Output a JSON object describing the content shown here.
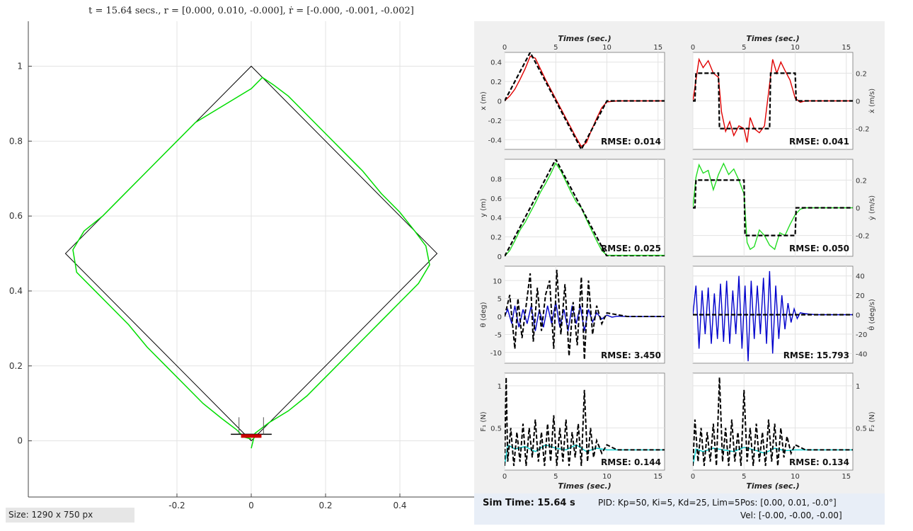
{
  "main_title": "t = 15.64 secs., r = [0.000, 0.010, -0.000], ṙ = [-0.000, -0.001, -0.002]",
  "status": {
    "sim_time": "Sim Time: 15.64 s",
    "pid": "PID: Kp=50, Ki=5, Kd=25, Lim=5",
    "pos": "Pos: [0.00, 0.01, -0.0°]",
    "vel": "Vel: [-0.00, -0.00, -0.00]"
  },
  "size_label": "Size: 1290 x 750 px",
  "colors": {
    "reference": "#000000",
    "trajectory": "#00dd00",
    "x_trace": "#e00000",
    "y_trace": "#22dd22",
    "theta_trace": "#0000cc",
    "force_trace": "#00cccc",
    "robot_body": "#cc0000"
  },
  "chart_data": [
    {
      "id": "trajectory",
      "type": "line",
      "title": "t = 15.64 secs., r = [0.000, 0.010, -0.000], ṙ = [-0.000, -0.001, -0.002]",
      "xlim": [
        -0.6,
        0.6
      ],
      "ylim": [
        -0.15,
        1.12
      ],
      "xticks": [
        -0.2,
        0,
        0.2,
        0.4
      ],
      "xtick_labels": [
        "-0.2",
        "0",
        "0.2",
        "0.4"
      ],
      "yticks": [
        0,
        0.2,
        0.4,
        0.6,
        0.8,
        1
      ],
      "ytick_labels": [
        "0",
        "0.2",
        "0.4",
        "0.6",
        "0.8",
        "1"
      ],
      "grid": true,
      "series": [
        {
          "name": "reference",
          "style": "solid-black",
          "x": [
            0,
            0.5,
            0,
            -0.5,
            0
          ],
          "y": [
            0,
            0.5,
            1,
            0.5,
            0
          ]
        },
        {
          "name": "actual",
          "style": "green",
          "x": [
            0.0,
            0.01,
            0.05,
            0.1,
            0.15,
            0.2,
            0.25,
            0.3,
            0.35,
            0.4,
            0.45,
            0.48,
            0.47,
            0.44,
            0.4,
            0.35,
            0.3,
            0.25,
            0.2,
            0.15,
            0.1,
            0.06,
            0.03,
            0.0,
            -0.05,
            -0.1,
            -0.15,
            -0.2,
            -0.25,
            -0.3,
            -0.35,
            -0.4,
            -0.45,
            -0.48,
            -0.47,
            -0.43,
            -0.38,
            -0.33,
            -0.28,
            -0.23,
            -0.18,
            -0.13,
            -0.08,
            -0.04,
            -0.02,
            0.0
          ],
          "y": [
            -0.02,
            0.02,
            0.05,
            0.08,
            0.12,
            0.17,
            0.22,
            0.27,
            0.32,
            0.37,
            0.42,
            0.47,
            0.52,
            0.56,
            0.61,
            0.66,
            0.72,
            0.77,
            0.82,
            0.87,
            0.92,
            0.95,
            0.97,
            0.94,
            0.91,
            0.88,
            0.85,
            0.8,
            0.75,
            0.7,
            0.65,
            0.6,
            0.56,
            0.51,
            0.45,
            0.41,
            0.36,
            0.31,
            0.25,
            0.2,
            0.15,
            0.1,
            0.06,
            0.03,
            0.01,
            0.005
          ]
        }
      ],
      "robot": {
        "x": 0.0,
        "y": 0.01,
        "width": 0.11
      }
    },
    {
      "id": "x",
      "type": "line",
      "ylabel": "x (m)",
      "ylabel_side": "left",
      "xlim": [
        0,
        15.64
      ],
      "ylim": [
        -0.5,
        0.5
      ],
      "yticks": [
        -0.4,
        -0.2,
        0,
        0.2,
        0.4
      ],
      "ytick_labels": [
        "-0.4",
        "-0.2",
        "0",
        "0.2",
        "0.4"
      ],
      "xticks": [
        0,
        5,
        10,
        15
      ],
      "xtick_labels": [
        "0",
        "5",
        "10",
        "15"
      ],
      "rmse": "RMSE: 0.014",
      "ref": {
        "x": [
          0,
          2.5,
          5,
          7.5,
          10,
          15.64
        ],
        "y": [
          0,
          0.5,
          0,
          -0.5,
          0,
          0
        ]
      },
      "actual": {
        "x": [
          0,
          0.5,
          1,
          1.5,
          2,
          2.5,
          3,
          3.5,
          4,
          4.5,
          5,
          5.5,
          6,
          6.5,
          7,
          7.5,
          8,
          8.5,
          9,
          9.5,
          10,
          11,
          12,
          13,
          14,
          15.64
        ],
        "y": [
          0,
          0.05,
          0.12,
          0.22,
          0.33,
          0.46,
          0.44,
          0.33,
          0.22,
          0.12,
          0.02,
          -0.08,
          -0.18,
          -0.28,
          -0.38,
          -0.47,
          -0.43,
          -0.3,
          -0.18,
          -0.07,
          -0.01,
          0,
          0,
          0,
          0,
          0
        ]
      }
    },
    {
      "id": "xdot",
      "type": "line",
      "ylabel": "ẋ (m/s)",
      "ylabel_side": "right",
      "xlim": [
        0,
        15.64
      ],
      "ylim": [
        -0.35,
        0.35
      ],
      "yticks": [
        -0.2,
        0,
        0.2
      ],
      "ytick_labels": [
        "-0.2",
        "0",
        "0.2"
      ],
      "xticks": [
        0,
        5,
        10,
        15
      ],
      "xtick_labels": [
        "0",
        "5",
        "10",
        "15"
      ],
      "rmse": "RMSE: 0.041",
      "ref": {
        "x": [
          0,
          0.2,
          0.3,
          2.5,
          2.6,
          5,
          5.1,
          7.5,
          7.6,
          10,
          10.1,
          15.64
        ],
        "y": [
          0,
          0,
          0.2,
          0.2,
          -0.2,
          -0.2,
          -0.2,
          -0.2,
          0.2,
          0.2,
          0,
          0
        ]
      },
      "actual": {
        "x": [
          0,
          0.3,
          0.6,
          1,
          1.5,
          2,
          2.5,
          2.8,
          3.2,
          3.6,
          4,
          4.5,
          5,
          5.3,
          5.6,
          6,
          6.5,
          7,
          7.5,
          7.8,
          8.2,
          8.6,
          9,
          9.5,
          10,
          10.5,
          11,
          12,
          13,
          15.64
        ],
        "y": [
          0,
          0.15,
          0.3,
          0.24,
          0.29,
          0.2,
          0.17,
          -0.08,
          -0.22,
          -0.15,
          -0.25,
          -0.18,
          -0.2,
          -0.3,
          -0.12,
          -0.2,
          -0.23,
          -0.18,
          0.12,
          0.3,
          0.2,
          0.28,
          0.22,
          0.15,
          0.02,
          -0.01,
          0,
          0,
          0,
          0
        ]
      }
    },
    {
      "id": "y",
      "type": "line",
      "ylabel": "y (m)",
      "ylabel_side": "left",
      "xlim": [
        0,
        15.64
      ],
      "ylim": [
        0,
        1
      ],
      "yticks": [
        0,
        0.2,
        0.4,
        0.6,
        0.8
      ],
      "ytick_labels": [
        "0",
        "0.2",
        "0.4",
        "0.6",
        "0.8"
      ],
      "xticks": [
        0,
        5,
        10,
        15
      ],
      "xtick_labels": [
        "0",
        "5",
        "10",
        "15"
      ],
      "rmse": "RMSE: 0.025",
      "ref": {
        "x": [
          0,
          5,
          10,
          15.64
        ],
        "y": [
          0,
          1,
          0,
          0
        ]
      },
      "actual": {
        "x": [
          0,
          0.5,
          1,
          1.5,
          2,
          2.5,
          3,
          3.5,
          4,
          4.5,
          5,
          5.5,
          6,
          6.5,
          7,
          7.5,
          8,
          8.5,
          9,
          9.5,
          10,
          11,
          12,
          13,
          15.64
        ],
        "y": [
          0,
          0.06,
          0.16,
          0.27,
          0.35,
          0.45,
          0.55,
          0.66,
          0.75,
          0.85,
          0.96,
          0.88,
          0.77,
          0.66,
          0.56,
          0.5,
          0.38,
          0.27,
          0.16,
          0.06,
          0.01,
          0.01,
          0.01,
          0.01,
          0.01
        ]
      }
    },
    {
      "id": "ydot",
      "type": "line",
      "ylabel": "ẏ (m/s)",
      "ylabel_side": "right",
      "xlim": [
        0,
        15.64
      ],
      "ylim": [
        -0.35,
        0.35
      ],
      "yticks": [
        -0.2,
        0,
        0.2
      ],
      "ytick_labels": [
        "-0.2",
        "0",
        "0.2"
      ],
      "xticks": [
        0,
        5,
        10,
        15
      ],
      "xtick_labels": [
        "0",
        "5",
        "10",
        "15"
      ],
      "rmse": "RMSE: 0.050",
      "ref": {
        "x": [
          0,
          0.2,
          0.3,
          5,
          5.1,
          10,
          10.1,
          15.64
        ],
        "y": [
          0,
          0,
          0.2,
          0.2,
          -0.2,
          -0.2,
          0,
          0
        ]
      },
      "actual": {
        "x": [
          0,
          0.3,
          0.6,
          1,
          1.5,
          2,
          2.5,
          3,
          3.5,
          4,
          4.5,
          5,
          5.3,
          5.6,
          6,
          6.5,
          7,
          7.5,
          8,
          8.5,
          9,
          9.5,
          10,
          10.5,
          11,
          12,
          13,
          15.64
        ],
        "y": [
          0,
          0.22,
          0.31,
          0.25,
          0.27,
          0.13,
          0.24,
          0.32,
          0.24,
          0.28,
          0.2,
          0.1,
          -0.25,
          -0.3,
          -0.28,
          -0.16,
          -0.2,
          -0.27,
          -0.3,
          -0.18,
          -0.2,
          -0.12,
          -0.05,
          -0.01,
          0,
          0,
          0,
          0
        ]
      }
    },
    {
      "id": "theta",
      "type": "line",
      "ylabel": "θ (deg)",
      "ylabel_side": "left",
      "xlim": [
        0,
        15.64
      ],
      "ylim": [
        -13,
        14
      ],
      "yticks": [
        -10,
        -5,
        0,
        5,
        10
      ],
      "ytick_labels": [
        "-10",
        "-5",
        "0",
        "5",
        "10"
      ],
      "xticks": [
        0,
        5,
        10,
        15
      ],
      "xtick_labels": [
        "0",
        "5",
        "10",
        "15"
      ],
      "rmse": "RMSE: 3.450",
      "ref_style": "noisy",
      "ref": {
        "x": [
          0,
          0.5,
          1,
          1.3,
          1.7,
          2.1,
          2.5,
          2.8,
          3.2,
          3.6,
          4,
          4.4,
          4.8,
          5.1,
          5.5,
          5.9,
          6.3,
          6.7,
          7.1,
          7.5,
          7.8,
          8.2,
          8.6,
          9,
          9.5,
          10,
          11,
          12,
          13,
          15.64
        ],
        "y": [
          0,
          6,
          -9,
          5,
          -6,
          3,
          12,
          -7,
          8,
          -4,
          6,
          10,
          -9,
          13,
          -5,
          9,
          -11,
          4,
          -8,
          11,
          -12,
          10,
          -5,
          3,
          -2,
          1,
          0.5,
          0,
          0,
          0
        ]
      },
      "actual": {
        "x": [
          0,
          0.3,
          0.7,
          1,
          1.4,
          1.8,
          2.2,
          2.6,
          3,
          3.4,
          3.8,
          4.2,
          4.6,
          5,
          5.4,
          5.8,
          6.2,
          6.6,
          7,
          7.4,
          7.8,
          8.2,
          8.6,
          9,
          9.5,
          10,
          10.5,
          11,
          12,
          13,
          15.64
        ],
        "y": [
          0,
          2,
          -2,
          3,
          -3,
          2,
          -2,
          3,
          -4,
          2,
          -3,
          3,
          -2,
          4,
          -3,
          2,
          -4,
          3,
          -2,
          3,
          -4,
          2,
          -1.5,
          1,
          -0.7,
          0.4,
          -0.2,
          0.1,
          0,
          0,
          0
        ]
      }
    },
    {
      "id": "thetadot",
      "type": "line",
      "ylabel": "θ̇ (deg/s)",
      "ylabel_side": "right",
      "xlim": [
        0,
        15.64
      ],
      "ylim": [
        -50,
        50
      ],
      "yticks": [
        -40,
        -20,
        0,
        20,
        40
      ],
      "ytick_labels": [
        "-40",
        "-20",
        "0",
        "20",
        "40"
      ],
      "xticks": [
        0,
        5,
        10,
        15
      ],
      "xtick_labels": [
        "0",
        "5",
        "10",
        "15"
      ],
      "rmse": "RMSE: 15.793",
      "ref": {
        "x": [
          0,
          15.64
        ],
        "y": [
          0,
          0
        ]
      },
      "actual": {
        "x": [
          0,
          0.3,
          0.6,
          0.9,
          1.2,
          1.5,
          1.8,
          2.1,
          2.4,
          2.7,
          3,
          3.3,
          3.6,
          3.9,
          4.2,
          4.5,
          4.8,
          5.1,
          5.4,
          5.7,
          6,
          6.3,
          6.6,
          6.9,
          7.2,
          7.5,
          7.8,
          8.1,
          8.4,
          8.7,
          9,
          9.3,
          9.6,
          9.9,
          10.2,
          10.5,
          11,
          12,
          13,
          15.64
        ],
        "y": [
          0,
          30,
          -35,
          25,
          -20,
          28,
          -30,
          22,
          -25,
          32,
          -28,
          35,
          -30,
          25,
          -20,
          40,
          -35,
          30,
          -48,
          35,
          -25,
          30,
          -20,
          38,
          -30,
          45,
          -40,
          30,
          -25,
          20,
          -15,
          12,
          -8,
          6,
          -4,
          2,
          1,
          0,
          0,
          0
        ]
      }
    },
    {
      "id": "F1",
      "type": "line",
      "ylabel": "F₁ (N)",
      "ylabel_side": "left",
      "xlim": [
        0,
        15.64
      ],
      "ylim": [
        0,
        1.15
      ],
      "yticks": [
        0.5,
        1
      ],
      "ytick_labels": [
        "0.5",
        "1"
      ],
      "xticks": [
        0,
        5,
        10,
        15
      ],
      "xtick_labels": [
        "0",
        "5",
        "10",
        "15"
      ],
      "rmse": "RMSE: 0.144",
      "ref_style": "noisy",
      "ref": {
        "x": [
          0,
          0.15,
          0.3,
          0.6,
          0.9,
          1.2,
          1.5,
          1.8,
          2.1,
          2.4,
          2.7,
          3,
          3.3,
          3.6,
          3.9,
          4.2,
          4.5,
          4.8,
          5.1,
          5.4,
          5.7,
          6,
          6.3,
          6.6,
          6.9,
          7.2,
          7.5,
          7.8,
          8.1,
          8.4,
          8.7,
          9,
          9.5,
          10,
          11,
          12,
          13,
          15.64
        ],
        "y": [
          0.05,
          1.1,
          0.1,
          0.5,
          0.05,
          0.45,
          0.1,
          0.55,
          0.05,
          0.5,
          0.15,
          0.6,
          0.1,
          0.45,
          0.05,
          0.55,
          0.1,
          0.65,
          0.05,
          0.5,
          0.1,
          0.6,
          0.05,
          0.45,
          0.15,
          0.55,
          0.05,
          0.95,
          0.1,
          0.5,
          0.15,
          0.35,
          0.2,
          0.3,
          0.24,
          0.24,
          0.24,
          0.24
        ]
      },
      "actual": {
        "x": [
          0,
          0.3,
          1,
          2,
          3,
          4,
          5,
          6,
          7,
          8,
          9,
          10,
          11,
          12,
          13,
          15.64
        ],
        "y": [
          0.05,
          0.3,
          0.25,
          0.28,
          0.22,
          0.3,
          0.26,
          0.24,
          0.3,
          0.22,
          0.26,
          0.24,
          0.24,
          0.24,
          0.24,
          0.24
        ]
      }
    },
    {
      "id": "F2",
      "type": "line",
      "ylabel": "F₂ (N)",
      "ylabel_side": "right",
      "xlim": [
        0,
        15.64
      ],
      "ylim": [
        0,
        1.15
      ],
      "yticks": [
        0.5,
        1
      ],
      "ytick_labels": [
        "0.5",
        "1"
      ],
      "xticks": [
        0,
        5,
        10,
        15
      ],
      "xtick_labels": [
        "0",
        "5",
        "10",
        "15"
      ],
      "rmse": "RMSE: 0.134",
      "ref_style": "noisy",
      "ref": {
        "x": [
          0,
          0.2,
          0.5,
          0.8,
          1.1,
          1.4,
          1.7,
          2,
          2.3,
          2.6,
          2.9,
          3.2,
          3.5,
          3.8,
          4.1,
          4.4,
          4.7,
          5,
          5.3,
          5.6,
          5.9,
          6.2,
          6.5,
          6.8,
          7.1,
          7.4,
          7.7,
          8,
          8.3,
          8.6,
          8.9,
          9.2,
          9.6,
          10,
          11,
          12,
          13,
          15.64
        ],
        "y": [
          0.05,
          0.6,
          0.1,
          0.5,
          0.05,
          0.45,
          0.1,
          0.55,
          0.05,
          1.1,
          0.1,
          0.5,
          0.05,
          0.6,
          0.1,
          0.45,
          0.05,
          0.95,
          0.1,
          0.5,
          0.05,
          0.55,
          0.1,
          0.45,
          0.05,
          0.6,
          0.1,
          0.55,
          0.05,
          0.5,
          0.15,
          0.4,
          0.2,
          0.3,
          0.24,
          0.24,
          0.24,
          0.24
        ]
      },
      "actual": {
        "x": [
          0,
          0.3,
          1,
          2,
          3,
          4,
          5,
          6,
          7,
          8,
          9,
          10,
          11,
          12,
          13,
          15.64
        ],
        "y": [
          0.05,
          0.25,
          0.22,
          0.26,
          0.24,
          0.22,
          0.27,
          0.24,
          0.2,
          0.26,
          0.23,
          0.24,
          0.24,
          0.24,
          0.24,
          0.24
        ]
      }
    }
  ],
  "subplot_labels": {
    "xlabel": "Times (sec.)"
  }
}
